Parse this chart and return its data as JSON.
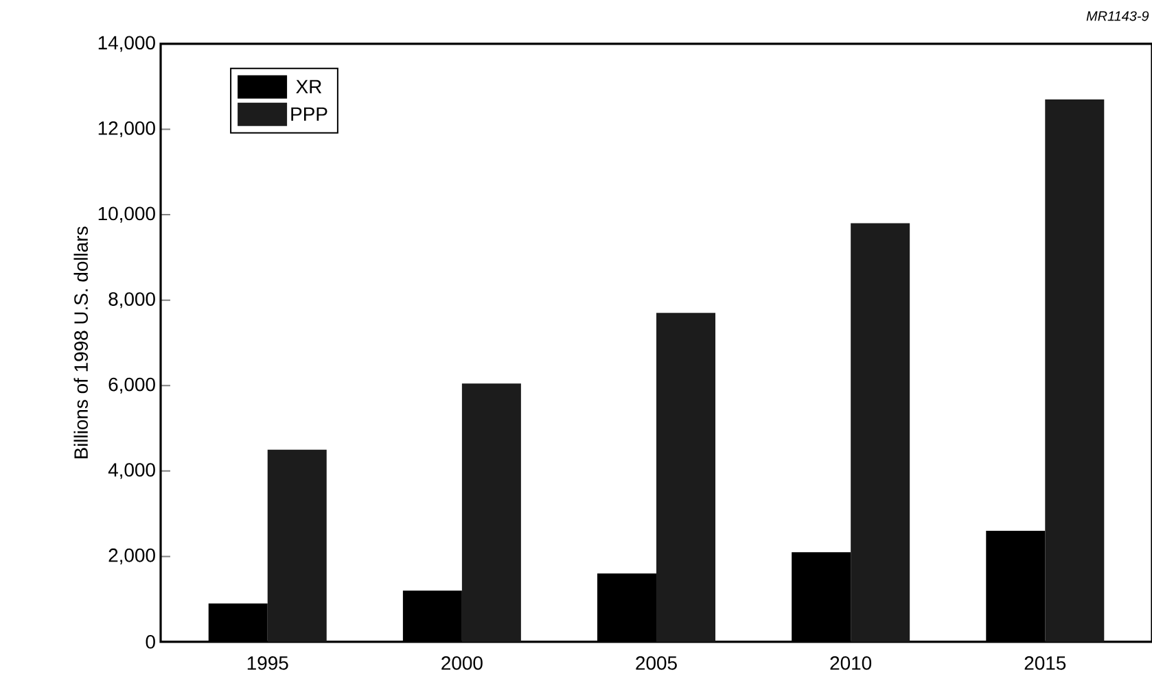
{
  "chart_data": {
    "type": "bar",
    "ylabel": "Billions of 1998 U.S. dollars",
    "categories": [
      "1995",
      "2000",
      "2005",
      "2010",
      "2015"
    ],
    "series": [
      {
        "name": "XR",
        "color": "#000000",
        "values": [
          900,
          1200,
          1600,
          2100,
          2600
        ]
      },
      {
        "name": "PPP",
        "color": "#1c1c1c",
        "values": [
          4500,
          6050,
          7700,
          9800,
          12700
        ]
      }
    ],
    "ylim": [
      0,
      14000
    ],
    "yticks": [
      {
        "value": 0,
        "label": "0"
      },
      {
        "value": 2000,
        "label": "2,000"
      },
      {
        "value": 4000,
        "label": "4,000"
      },
      {
        "value": 6000,
        "label": "6,000"
      },
      {
        "value": 8000,
        "label": "8,000"
      },
      {
        "value": 10000,
        "label": "10,000"
      },
      {
        "value": 12000,
        "label": "12,000"
      },
      {
        "value": 14000,
        "label": "14,000"
      }
    ],
    "grid": false,
    "legend": "top left",
    "annotations": [
      "*MR1143-9*"
    ]
  }
}
